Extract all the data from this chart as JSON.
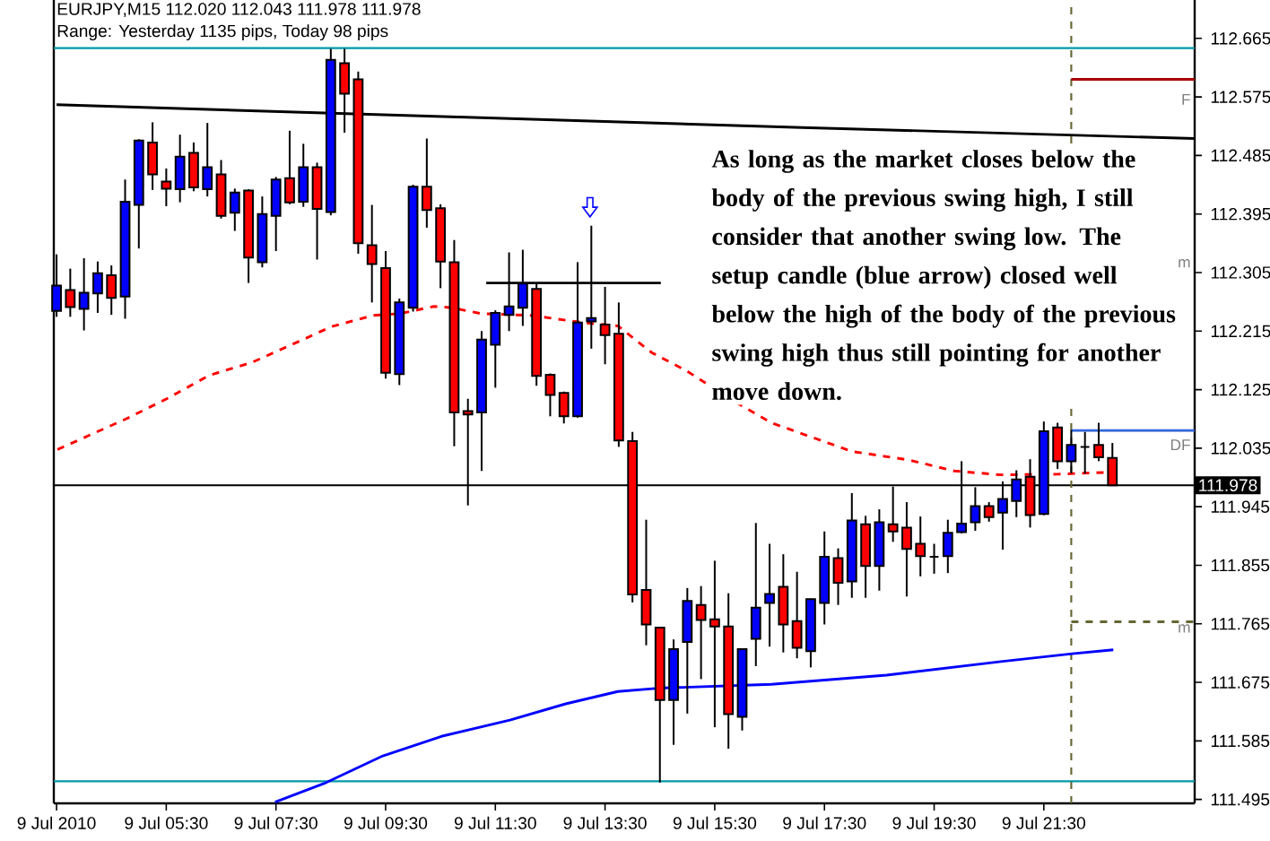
{
  "chart_data": {
    "type": "candlestick",
    "title": "EURJPY,M15  112.020 112.043 111.978 111.978",
    "subtitle": "Range: Yesterday 1135 pips, Today 98 pips",
    "x": [
      "2010-07-09T03:30",
      "2010-07-09T03:45",
      "2010-07-09T04:00",
      "2010-07-09T04:15",
      "2010-07-09T04:30",
      "2010-07-09T04:45",
      "2010-07-09T05:00",
      "2010-07-09T05:15",
      "2010-07-09T05:30",
      "2010-07-09T05:45",
      "2010-07-09T06:00",
      "2010-07-09T06:15",
      "2010-07-09T06:30",
      "2010-07-09T06:45",
      "2010-07-09T07:00",
      "2010-07-09T07:15",
      "2010-07-09T07:30",
      "2010-07-09T07:45",
      "2010-07-09T08:00",
      "2010-07-09T08:15",
      "2010-07-09T08:30",
      "2010-07-09T08:45",
      "2010-07-09T09:00",
      "2010-07-09T09:15",
      "2010-07-09T09:30",
      "2010-07-09T09:45",
      "2010-07-09T10:00",
      "2010-07-09T10:15",
      "2010-07-09T10:30",
      "2010-07-09T10:45",
      "2010-07-09T11:00",
      "2010-07-09T11:15",
      "2010-07-09T11:30",
      "2010-07-09T11:45",
      "2010-07-09T12:00",
      "2010-07-09T12:15",
      "2010-07-09T12:30",
      "2010-07-09T12:45",
      "2010-07-09T13:00",
      "2010-07-09T13:15",
      "2010-07-09T13:30",
      "2010-07-09T13:45",
      "2010-07-09T14:00",
      "2010-07-09T14:15",
      "2010-07-09T14:30",
      "2010-07-09T14:45",
      "2010-07-09T15:00",
      "2010-07-09T15:15",
      "2010-07-09T15:30",
      "2010-07-09T15:45",
      "2010-07-09T16:00",
      "2010-07-09T16:15",
      "2010-07-09T16:30",
      "2010-07-09T16:45",
      "2010-07-09T17:00",
      "2010-07-09T17:15",
      "2010-07-09T17:30",
      "2010-07-09T17:45",
      "2010-07-09T18:00",
      "2010-07-09T18:15",
      "2010-07-09T18:30",
      "2010-07-09T18:45",
      "2010-07-09T19:00",
      "2010-07-09T19:15",
      "2010-07-09T19:30",
      "2010-07-09T19:45",
      "2010-07-09T20:00",
      "2010-07-09T20:15",
      "2010-07-09T20:30",
      "2010-07-09T20:45",
      "2010-07-09T21:00",
      "2010-07-09T21:15",
      "2010-07-09T21:30",
      "2010-07-09T21:45",
      "2010-07-09T22:00",
      "2010-07-09T22:15",
      "2010-07-09T22:30",
      "2010-07-09T22:45"
    ],
    "ohlc": [
      [
        112.246,
        112.333,
        112.237,
        112.285
      ],
      [
        112.278,
        112.311,
        112.237,
        112.252
      ],
      [
        112.249,
        112.327,
        112.216,
        112.274
      ],
      [
        112.273,
        112.322,
        112.243,
        112.304
      ],
      [
        112.301,
        112.316,
        112.24,
        112.266
      ],
      [
        112.268,
        112.448,
        112.234,
        112.414
      ],
      [
        112.409,
        112.51,
        112.342,
        112.508
      ],
      [
        112.505,
        112.536,
        112.432,
        112.456
      ],
      [
        112.445,
        112.465,
        112.407,
        112.434
      ],
      [
        112.433,
        112.517,
        112.413,
        112.483
      ],
      [
        112.489,
        112.505,
        112.43,
        112.436
      ],
      [
        112.433,
        112.535,
        112.422,
        112.467
      ],
      [
        112.456,
        112.478,
        112.388,
        112.392
      ],
      [
        112.397,
        112.434,
        112.369,
        112.428
      ],
      [
        112.431,
        112.433,
        112.289,
        112.328
      ],
      [
        112.321,
        112.422,
        112.313,
        112.395
      ],
      [
        112.392,
        112.452,
        112.338,
        112.448
      ],
      [
        112.45,
        112.523,
        112.41,
        112.413
      ],
      [
        112.414,
        112.503,
        112.406,
        112.467
      ],
      [
        112.467,
        112.474,
        112.325,
        112.403
      ],
      [
        112.398,
        112.649,
        112.393,
        112.632
      ],
      [
        112.627,
        112.649,
        112.52,
        112.58
      ],
      [
        112.602,
        112.614,
        112.334,
        112.35
      ],
      [
        112.347,
        112.409,
        112.259,
        112.318
      ],
      [
        112.312,
        112.338,
        112.142,
        112.151
      ],
      [
        112.149,
        112.265,
        112.132,
        112.259
      ],
      [
        112.251,
        112.44,
        112.245,
        112.437
      ],
      [
        112.437,
        112.511,
        112.374,
        112.401
      ],
      [
        112.404,
        112.41,
        112.281,
        112.322
      ],
      [
        112.321,
        112.355,
        112.038,
        112.09
      ],
      [
        112.092,
        112.111,
        111.947,
        112.087
      ],
      [
        112.09,
        112.215,
        112.0,
        112.202
      ],
      [
        112.194,
        112.247,
        112.128,
        112.243
      ],
      [
        112.24,
        112.336,
        112.215,
        112.253
      ],
      [
        112.251,
        112.34,
        112.223,
        112.288
      ],
      [
        112.28,
        112.289,
        112.131,
        112.146
      ],
      [
        112.148,
        112.15,
        112.084,
        112.117
      ],
      [
        112.12,
        112.122,
        112.073,
        112.084
      ],
      [
        112.084,
        112.321,
        112.082,
        112.228
      ],
      [
        112.23,
        112.377,
        112.188,
        112.235
      ],
      [
        112.225,
        112.283,
        112.164,
        112.209
      ],
      [
        112.211,
        112.259,
        112.037,
        112.047
      ],
      [
        112.046,
        112.06,
        111.798,
        111.81
      ],
      [
        111.817,
        111.925,
        111.732,
        111.764
      ],
      [
        111.759,
        111.76,
        111.521,
        111.648
      ],
      [
        111.648,
        111.741,
        111.579,
        111.726
      ],
      [
        111.737,
        111.82,
        111.627,
        111.8
      ],
      [
        111.794,
        111.823,
        111.68,
        111.771
      ],
      [
        111.772,
        111.862,
        111.606,
        111.761
      ],
      [
        111.761,
        111.812,
        111.573,
        111.626
      ],
      [
        111.622,
        111.726,
        111.601,
        111.726
      ],
      [
        111.742,
        111.92,
        111.7,
        111.79
      ],
      [
        111.797,
        111.888,
        111.73,
        111.811
      ],
      [
        111.822,
        111.872,
        111.721,
        111.764
      ],
      [
        111.769,
        111.845,
        111.712,
        111.728
      ],
      [
        111.723,
        111.804,
        111.698,
        111.803
      ],
      [
        111.797,
        111.907,
        111.764,
        111.868
      ],
      [
        111.866,
        111.881,
        111.794,
        111.828
      ],
      [
        111.83,
        111.966,
        111.805,
        111.924
      ],
      [
        111.918,
        111.931,
        111.805,
        111.854
      ],
      [
        111.854,
        111.941,
        111.816,
        111.921
      ],
      [
        111.918,
        111.976,
        111.891,
        111.907
      ],
      [
        111.913,
        111.952,
        111.807,
        111.88
      ],
      [
        111.888,
        111.93,
        111.838,
        111.869
      ],
      [
        111.868,
        111.888,
        111.842,
        111.868
      ],
      [
        111.869,
        111.925,
        111.843,
        111.905
      ],
      [
        111.906,
        112.015,
        111.904,
        111.919
      ],
      [
        111.921,
        111.975,
        111.908,
        111.946
      ],
      [
        111.946,
        111.952,
        111.922,
        111.929
      ],
      [
        111.936,
        111.984,
        111.879,
        111.957
      ],
      [
        111.954,
        112.001,
        111.929,
        111.987
      ],
      [
        111.991,
        112.018,
        111.913,
        111.932
      ],
      [
        111.934,
        112.076,
        111.932,
        112.061
      ],
      [
        112.067,
        112.074,
        112.003,
        112.015
      ],
      [
        112.015,
        112.063,
        111.996,
        112.04
      ],
      [
        112.037,
        112.06,
        111.996,
        112.037
      ],
      [
        112.04,
        112.074,
        112.015,
        112.021
      ],
      [
        112.02,
        112.043,
        111.978,
        111.978
      ]
    ],
    "colors": [
      "#0000ff",
      "#ff0000",
      "#0000ff",
      "#0000ff",
      "#ff0000",
      "#0000ff",
      "#0000ff",
      "#ff0000",
      "#ff0000",
      "#0000ff",
      "#ff0000",
      "#0000ff",
      "#ff0000",
      "#0000ff",
      "#ff0000",
      "#0000ff",
      "#0000ff",
      "#ff0000",
      "#0000ff",
      "#ff0000",
      "#0000ff",
      "#ff0000",
      "#ff0000",
      "#ff0000",
      "#ff0000",
      "#0000ff",
      "#0000ff",
      "#ff0000",
      "#ff0000",
      "#ff0000",
      "#ff0000",
      "#0000ff",
      "#0000ff",
      "#0000ff",
      "#0000ff",
      "#ff0000",
      "#ff0000",
      "#ff0000",
      "#0000ff",
      "#0000ff",
      "#ff0000",
      "#ff0000",
      "#ff0000",
      "#ff0000",
      "#ff0000",
      "#0000ff",
      "#0000ff",
      "#ff0000",
      "#ff0000",
      "#ff0000",
      "#0000ff",
      "#0000ff",
      "#0000ff",
      "#ff0000",
      "#ff0000",
      "#0000ff",
      "#0000ff",
      "#ff0000",
      "#0000ff",
      "#ff0000",
      "#0000ff",
      "#ff0000",
      "#ff0000",
      "#ff0000",
      "#000000",
      "#0000ff",
      "#0000ff",
      "#0000ff",
      "#ff0000",
      "#0000ff",
      "#0000ff",
      "#ff0000",
      "#0000ff",
      "#ff0000",
      "#0000ff",
      "#000000",
      "#ff0000",
      "#ff0000"
    ],
    "series": [
      {
        "type": "line",
        "color": "#ff0000",
        "line_style": "dashed",
        "x": [
          "2010-07-09T03:31",
          "2010-07-09T04:46",
          "2010-07-09T05:32",
          "2010-07-09T06:17",
          "2010-07-09T07:04",
          "2010-07-09T07:47",
          "2010-07-09T08:31",
          "2010-07-09T09:16",
          "2010-07-09T09:46",
          "2010-07-09T10:23",
          "2010-07-09T10:42",
          "2010-07-09T11:14",
          "2010-07-09T12:10",
          "2010-07-09T13:06",
          "2010-07-09T13:44",
          "2010-07-09T14:21",
          "2010-07-09T14:59",
          "2010-07-09T15:55",
          "2010-07-09T16:32",
          "2010-07-09T18:00",
          "2010-07-09T19:02",
          "2010-07-09T19:52",
          "2010-07-09T20:43",
          "2010-07-09T21:45",
          "2010-07-09T22:41"
        ],
        "values": [
          112.033,
          112.08,
          112.112,
          112.147,
          112.167,
          112.194,
          112.222,
          112.239,
          112.242,
          112.253,
          112.251,
          112.242,
          112.239,
          112.228,
          112.223,
          112.182,
          112.154,
          112.104,
          112.074,
          112.03,
          112.017,
          112.0,
          111.994,
          111.995,
          111.998
        ]
      },
      {
        "type": "line",
        "color": "#0000ff",
        "x": [
          "2010-07-09T07:29",
          "2010-07-09T08:25",
          "2010-07-09T09:27",
          "2010-07-09T10:31",
          "2010-07-09T11:46",
          "2010-07-09T12:47",
          "2010-07-09T13:44",
          "2010-07-09T14:28",
          "2010-07-09T16:32",
          "2010-07-09T18:38",
          "2010-07-09T20:43",
          "2010-07-09T22:01",
          "2010-07-09T22:46"
        ],
        "values": [
          111.491,
          111.521,
          111.562,
          111.592,
          111.617,
          111.642,
          111.661,
          111.666,
          111.672,
          111.686,
          111.707,
          111.719,
          111.725
        ]
      },
      {
        "type": "line",
        "color": "#000000",
        "x": [
          "2010-07-09T03:30",
          "2010-07-09T10:50",
          "2010-07-09T17:05",
          "2010-07-10T00:15"
        ],
        "values": [
          112.563,
          112.544,
          112.528,
          112.511
        ]
      },
      {
        "type": "line",
        "color": "#000000",
        "x": [
          "2010-07-09T11:20",
          "2010-07-09T14:31"
        ],
        "values": [
          112.289,
          112.289
        ]
      },
      {
        "type": "line",
        "color": "#aa0000",
        "x": [
          "2010-07-09T22:00",
          "2010-07-10T00:15"
        ],
        "values": [
          112.602,
          112.602
        ]
      },
      {
        "type": "line",
        "color": "#3366dd",
        "x": [
          "2010-07-09T22:00",
          "2010-07-10T00:15"
        ],
        "values": [
          112.062,
          112.062
        ]
      },
      {
        "type": "line",
        "color": "#666633",
        "line_style": "dashed",
        "x": [
          "2010-07-09T22:00",
          "2010-07-10T00:15"
        ],
        "values": [
          111.768,
          111.768
        ]
      }
    ],
    "ref_lines": [
      {
        "axis": "y",
        "value": 112.65,
        "color": "#0099aa"
      },
      {
        "axis": "y",
        "value": 111.523,
        "color": "#0099aa"
      },
      {
        "axis": "y",
        "value": 111.978,
        "label": "111.978",
        "color": "#000000"
      },
      {
        "axis": "x",
        "value": "2010-07-09T22:00",
        "color": "#666633",
        "line_style": "dashed"
      }
    ],
    "annotations": [
      "As long as the market closes below the body of the previous swing high, I still consider that another swing low. The setup candle (blue arrow) closed well below the high of the body of the previous swing high thus still pointing for another move down.",
      "F",
      "DF",
      "m",
      "m"
    ],
    "xlim": [
      "2010-07-09T03:27",
      "2010-07-10T00:15"
    ],
    "ylim": [
      111.489,
      112.724
    ],
    "xticks": [
      {
        "value": "2010-07-09T03:30",
        "label": "9 Jul 2010"
      },
      {
        "value": "2010-07-09T05:30",
        "label": "9 Jul 05:30"
      },
      {
        "value": "2010-07-09T07:30",
        "label": "9 Jul 07:30"
      },
      {
        "value": "2010-07-09T09:30",
        "label": "9 Jul 09:30"
      },
      {
        "value": "2010-07-09T11:30",
        "label": "9 Jul 11:30"
      },
      {
        "value": "2010-07-09T13:30",
        "label": "9 Jul 13:30"
      },
      {
        "value": "2010-07-09T15:30",
        "label": "9 Jul 15:30"
      },
      {
        "value": "2010-07-09T17:30",
        "label": "9 Jul 17:30"
      },
      {
        "value": "2010-07-09T19:30",
        "label": "9 Jul 19:30"
      },
      {
        "value": "2010-07-09T21:30",
        "label": "9 Jul 21:30"
      }
    ],
    "yticks": [
      111.495,
      111.585,
      111.675,
      111.765,
      111.855,
      111.945,
      112.035,
      112.125,
      112.215,
      112.305,
      112.395,
      112.485,
      112.575,
      112.665
    ]
  }
}
